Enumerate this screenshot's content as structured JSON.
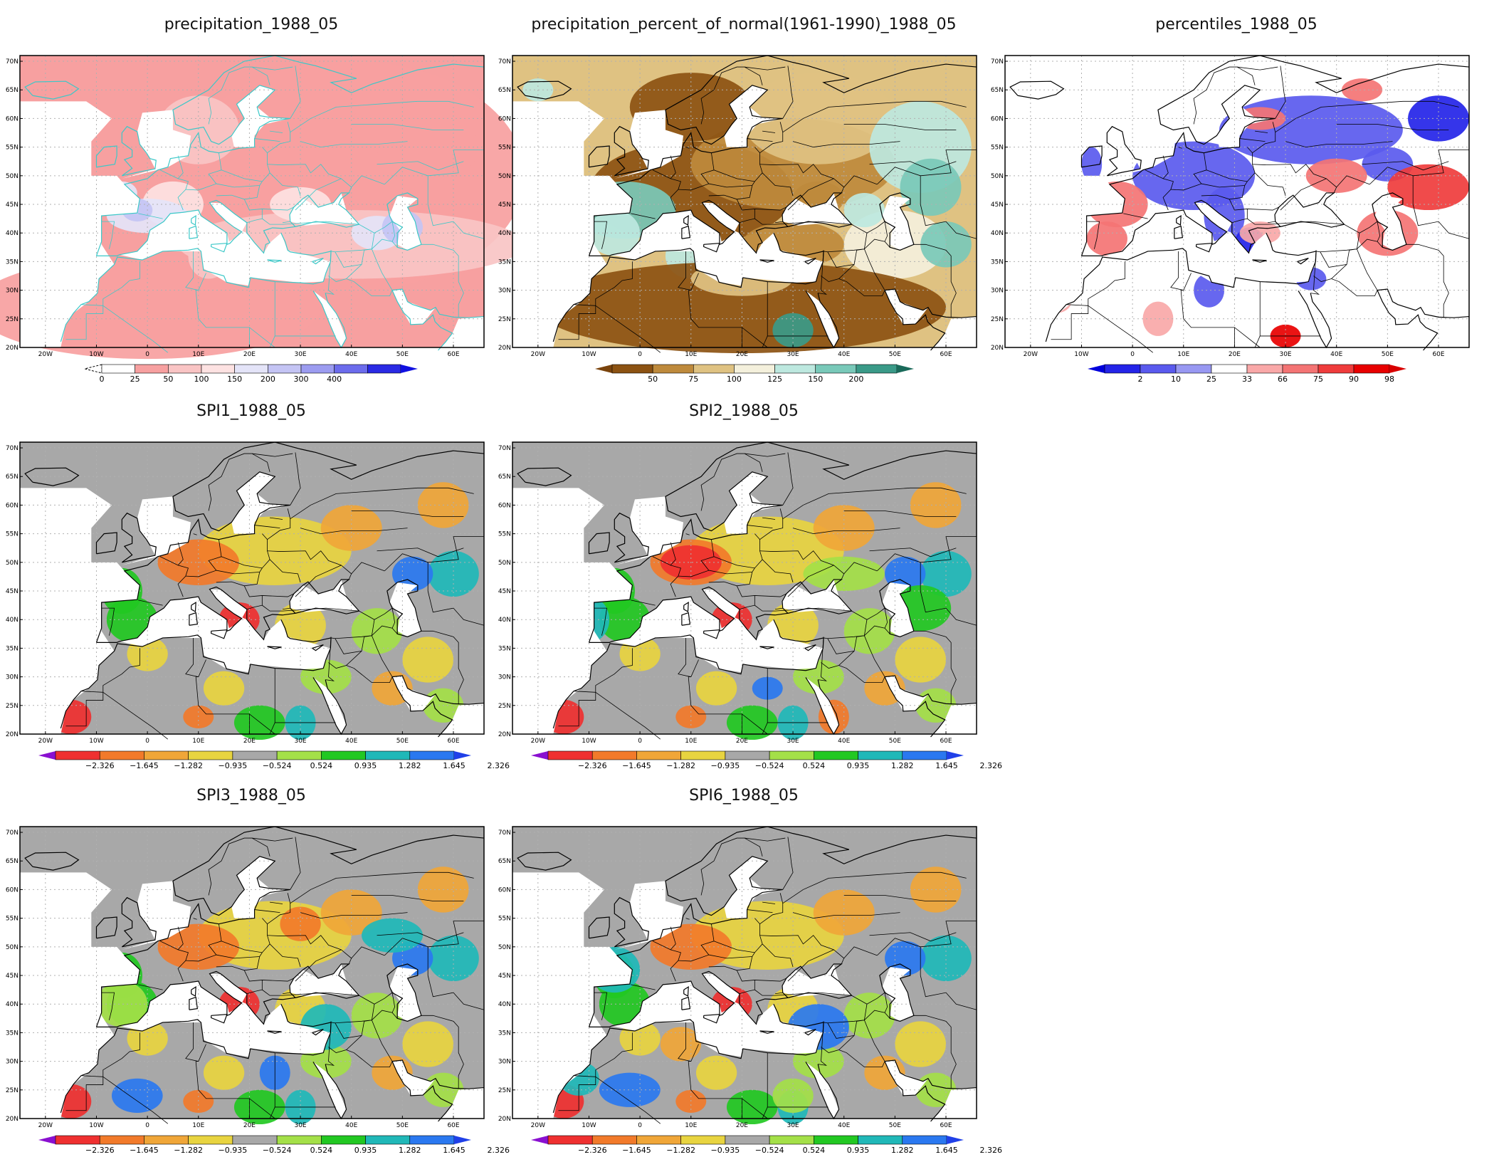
{
  "lat_labels": [
    "70N",
    "65N",
    "60N",
    "55N",
    "50N",
    "45N",
    "40N",
    "35N",
    "30N",
    "25N",
    "20N"
  ],
  "lon_labels": [
    "20W",
    "10W",
    "0",
    "10E",
    "20E",
    "30E",
    "40E",
    "50E",
    "60E"
  ],
  "panels": [
    {
      "id": "precip",
      "title": "precipitation_1988_05",
      "scheme": "precip",
      "coast_color": "#3cc8c8",
      "colorbar": {
        "labels": [
          "0",
          "25",
          "50",
          "100",
          "150",
          "200",
          "300",
          "400"
        ],
        "colors": [
          "#ffffff",
          "#f7a0a0",
          "#f9c4c4",
          "#fde2e2",
          "#e4e4f8",
          "#c4c4f4",
          "#9c9cf0",
          "#6c6cec",
          "#2a2ae4"
        ],
        "left_arrow": "dashed-white",
        "right_arrow": "#1010e0"
      }
    },
    {
      "id": "pct_normal",
      "title": "precipitation_percent_of_normal(1961-1990)_1988_05",
      "scheme": "pct",
      "coast_color": "#000000",
      "colorbar": {
        "labels": [
          "50",
          "75",
          "100",
          "125",
          "150",
          "200"
        ],
        "colors": [
          "#8c5212",
          "#be8a3c",
          "#dfc282",
          "#f4f0dc",
          "#bde8df",
          "#79c9b9",
          "#3a9a88"
        ],
        "left_arrow": "#7a430c",
        "right_arrow": "#1a6a5a"
      }
    },
    {
      "id": "percentiles",
      "title": "percentiles_1988_05",
      "scheme": "perc",
      "coast_color": "#000000",
      "colorbar": {
        "labels": [
          "2",
          "10",
          "25",
          "33",
          "66",
          "75",
          "90",
          "98"
        ],
        "colors": [
          "#2424e8",
          "#5a5aee",
          "#9898f2",
          "#ffffff",
          "#f9a8a8",
          "#f47474",
          "#ef3c3c",
          "#e80000"
        ],
        "left_arrow": "#0000dc",
        "right_arrow": "#d80000"
      }
    },
    {
      "id": "spi1",
      "title": "SPI1_1988_05",
      "scheme": "spi",
      "coast_color": "#000000",
      "colorbar": {
        "labels": [
          "-2.326",
          "-1.645",
          "-1.282",
          "-0.935",
          "-0.524",
          "0.524",
          "0.935",
          "1.282",
          "1.645",
          "2.326"
        ],
        "colors": [
          "#ef3030",
          "#f27a2a",
          "#f0a638",
          "#e8d440",
          "#a8a8a8",
          "#a4e048",
          "#22c822",
          "#20b8b8",
          "#2a78f0"
        ],
        "left_arrow": "#8a10d0",
        "right_arrow": "#2040e8"
      }
    },
    {
      "id": "spi2",
      "title": "SPI2_1988_05",
      "scheme": "spi",
      "coast_color": "#000000",
      "colorbar": {
        "labels": [
          "-2.326",
          "-1.645",
          "-1.282",
          "-0.935",
          "-0.524",
          "0.524",
          "0.935",
          "1.282",
          "1.645",
          "2.326"
        ],
        "colors": [
          "#ef3030",
          "#f27a2a",
          "#f0a638",
          "#e8d440",
          "#a8a8a8",
          "#a4e048",
          "#22c822",
          "#20b8b8",
          "#2a78f0"
        ],
        "left_arrow": "#8a10d0",
        "right_arrow": "#2040e8"
      }
    },
    {
      "id": "spi3",
      "title": "SPI3_1988_05",
      "scheme": "spi",
      "coast_color": "#000000",
      "colorbar": {
        "labels": [
          "-2.326",
          "-1.645",
          "-1.282",
          "-0.935",
          "-0.524",
          "0.524",
          "0.935",
          "1.282",
          "1.645",
          "2.326"
        ],
        "colors": [
          "#ef3030",
          "#f27a2a",
          "#f0a638",
          "#e8d440",
          "#a8a8a8",
          "#a4e048",
          "#22c822",
          "#20b8b8",
          "#2a78f0"
        ],
        "left_arrow": "#8a10d0",
        "right_arrow": "#2040e8"
      }
    },
    {
      "id": "spi6",
      "title": "SPI6_1988_05",
      "scheme": "spi",
      "coast_color": "#000000",
      "colorbar": {
        "labels": [
          "-2.326",
          "-1.645",
          "-1.282",
          "-0.935",
          "-0.524",
          "0.524",
          "0.935",
          "1.282",
          "1.645",
          "2.326"
        ],
        "colors": [
          "#ef3030",
          "#f27a2a",
          "#f0a638",
          "#e8d440",
          "#a8a8a8",
          "#a4e048",
          "#22c822",
          "#20b8b8",
          "#2a78f0"
        ],
        "left_arrow": "#8a10d0",
        "right_arrow": "#2040e8"
      }
    }
  ]
}
